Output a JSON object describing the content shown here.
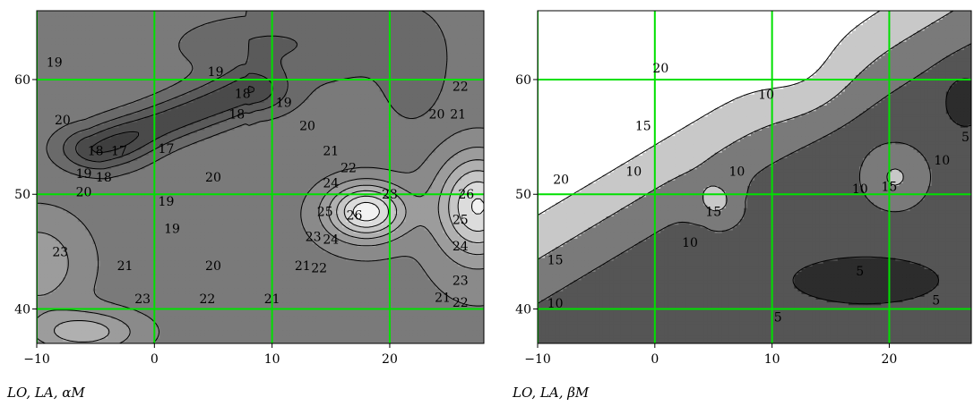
{
  "chart_data": [
    {
      "type": "contour",
      "xlabel": "LO, LA, αM",
      "x_ticks": [
        -10,
        0,
        10,
        20
      ],
      "y_ticks": [
        40,
        50,
        60
      ],
      "xlim": [
        -10,
        28
      ],
      "ylim": [
        37,
        66
      ],
      "grid": true,
      "grid_color": "#00e000",
      "contour_levels": [
        15,
        16,
        17,
        18,
        19,
        20,
        21,
        22,
        23,
        24,
        25,
        26
      ],
      "contour_labels": [
        {
          "x": -8.5,
          "y": 61.5,
          "text": "19"
        },
        {
          "x": 5.2,
          "y": 60.7,
          "text": "19"
        },
        {
          "x": -7.8,
          "y": 56.5,
          "text": "20"
        },
        {
          "x": 7.5,
          "y": 58.8,
          "text": "18"
        },
        {
          "x": 7.0,
          "y": 57.0,
          "text": "18"
        },
        {
          "x": 11.0,
          "y": 58.0,
          "text": "19"
        },
        {
          "x": 1.0,
          "y": 54.0,
          "text": "17"
        },
        {
          "x": -5.0,
          "y": 53.8,
          "text": "18"
        },
        {
          "x": -3.0,
          "y": 53.8,
          "text": "17"
        },
        {
          "x": -6.0,
          "y": 51.8,
          "text": "19"
        },
        {
          "x": -4.3,
          "y": 51.5,
          "text": "18"
        },
        {
          "x": 5.0,
          "y": 51.5,
          "text": "20"
        },
        {
          "x": -6.0,
          "y": 50.2,
          "text": "20"
        },
        {
          "x": 1.0,
          "y": 49.4,
          "text": "19"
        },
        {
          "x": 1.5,
          "y": 47.0,
          "text": "19"
        },
        {
          "x": 13.0,
          "y": 56.0,
          "text": "20"
        },
        {
          "x": 15.0,
          "y": 53.8,
          "text": "21"
        },
        {
          "x": 16.5,
          "y": 52.3,
          "text": "22"
        },
        {
          "x": 15.0,
          "y": 51.0,
          "text": "24"
        },
        {
          "x": 20.0,
          "y": 50.0,
          "text": "23"
        },
        {
          "x": 14.5,
          "y": 48.5,
          "text": "25"
        },
        {
          "x": 17.0,
          "y": 48.2,
          "text": "26"
        },
        {
          "x": 13.5,
          "y": 46.3,
          "text": "23"
        },
        {
          "x": 15.0,
          "y": 46.1,
          "text": "24"
        },
        {
          "x": 12.6,
          "y": 43.8,
          "text": "21"
        },
        {
          "x": 14.0,
          "y": 43.6,
          "text": "22"
        },
        {
          "x": 24.0,
          "y": 57.0,
          "text": "20"
        },
        {
          "x": 25.8,
          "y": 57.0,
          "text": "21"
        },
        {
          "x": 26.0,
          "y": 59.4,
          "text": "22"
        },
        {
          "x": 26.5,
          "y": 50.0,
          "text": "26"
        },
        {
          "x": 26.0,
          "y": 47.8,
          "text": "25"
        },
        {
          "x": 26.0,
          "y": 45.5,
          "text": "24"
        },
        {
          "x": 26.0,
          "y": 42.5,
          "text": "23"
        },
        {
          "x": 24.5,
          "y": 41.0,
          "text": "21"
        },
        {
          "x": 26.0,
          "y": 40.6,
          "text": "22"
        },
        {
          "x": -8.0,
          "y": 45.0,
          "text": "23"
        },
        {
          "x": -2.5,
          "y": 43.8,
          "text": "21"
        },
        {
          "x": 5.0,
          "y": 43.8,
          "text": "20"
        },
        {
          "x": -1.0,
          "y": 40.9,
          "text": "23"
        },
        {
          "x": 4.5,
          "y": 40.9,
          "text": "22"
        },
        {
          "x": 10.0,
          "y": 40.9,
          "text": "21"
        }
      ]
    },
    {
      "type": "contour",
      "xlabel": "LO, LA, βM",
      "x_ticks": [
        -10,
        0,
        10,
        20
      ],
      "y_ticks": [
        40,
        50,
        60
      ],
      "xlim": [
        -10,
        27
      ],
      "ylim": [
        37,
        66
      ],
      "grid": true,
      "grid_color": "#00e000",
      "contour_levels": [
        5,
        10,
        15,
        20
      ],
      "contour_labels": [
        {
          "x": 0.5,
          "y": 61.0,
          "text": "20"
        },
        {
          "x": 9.5,
          "y": 58.7,
          "text": "10"
        },
        {
          "x": -1.0,
          "y": 56.0,
          "text": "15"
        },
        {
          "x": -8.0,
          "y": 51.3,
          "text": "20"
        },
        {
          "x": -1.8,
          "y": 52.0,
          "text": "10"
        },
        {
          "x": 7.0,
          "y": 52.0,
          "text": "10"
        },
        {
          "x": 5.0,
          "y": 48.5,
          "text": "15"
        },
        {
          "x": 3.0,
          "y": 45.8,
          "text": "10"
        },
        {
          "x": -8.5,
          "y": 44.3,
          "text": "15"
        },
        {
          "x": -8.5,
          "y": 40.5,
          "text": "10"
        },
        {
          "x": 17.5,
          "y": 50.5,
          "text": "10"
        },
        {
          "x": 20.0,
          "y": 50.7,
          "text": "15"
        },
        {
          "x": 24.5,
          "y": 53.0,
          "text": "10"
        },
        {
          "x": 26.5,
          "y": 55.0,
          "text": "5"
        },
        {
          "x": 17.5,
          "y": 43.3,
          "text": "5"
        },
        {
          "x": 10.5,
          "y": 39.3,
          "text": "5"
        },
        {
          "x": 24.0,
          "y": 40.8,
          "text": "5"
        }
      ]
    }
  ]
}
